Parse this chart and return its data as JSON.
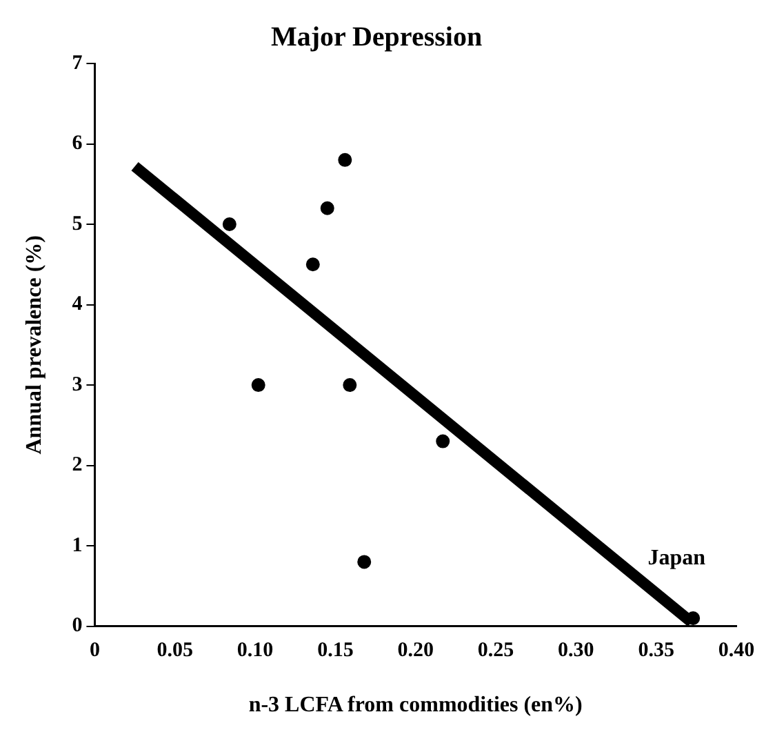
{
  "chart_data": {
    "type": "scatter",
    "title": "Major Depression",
    "xlabel": "n-3 LCFA from commodities (en%)",
    "ylabel": "Annual prevalence (%)",
    "x": [
      0.084,
      0.102,
      0.136,
      0.145,
      0.156,
      0.159,
      0.168,
      0.217,
      0.373
    ],
    "series": [
      {
        "color": "#000000",
        "marker": "circle",
        "values": [
          5.0,
          3.0,
          4.5,
          5.2,
          5.8,
          3.0,
          0.8,
          2.3,
          0.1
        ]
      },
      {
        "type": "line",
        "marker": "none",
        "color": "#000000",
        "x": [
          0.025,
          0.372
        ],
        "values": [
          5.72,
          0.05
        ]
      }
    ],
    "annotations": [
      {
        "text": "Japan",
        "x": 0.373,
        "y": 0.1
      }
    ],
    "xlim": [
      0,
      0.4
    ],
    "xticks": [
      {
        "value": 0,
        "label": "0"
      },
      {
        "value": 0.05,
        "label": "0.05"
      },
      {
        "value": 0.1,
        "label": "0.10"
      },
      {
        "value": 0.15,
        "label": "0.15"
      },
      {
        "value": 0.2,
        "label": "0.20"
      },
      {
        "value": 0.25,
        "label": "0.25"
      },
      {
        "value": 0.3,
        "label": "0.30"
      },
      {
        "value": 0.35,
        "label": "0.35"
      },
      {
        "value": 0.4,
        "label": "0.40"
      }
    ],
    "ylim": [
      0,
      7
    ],
    "yticks": [
      0,
      1,
      2,
      3,
      4,
      5,
      6,
      7
    ],
    "grid": false,
    "legend": false,
    "line_style": "solid"
  }
}
